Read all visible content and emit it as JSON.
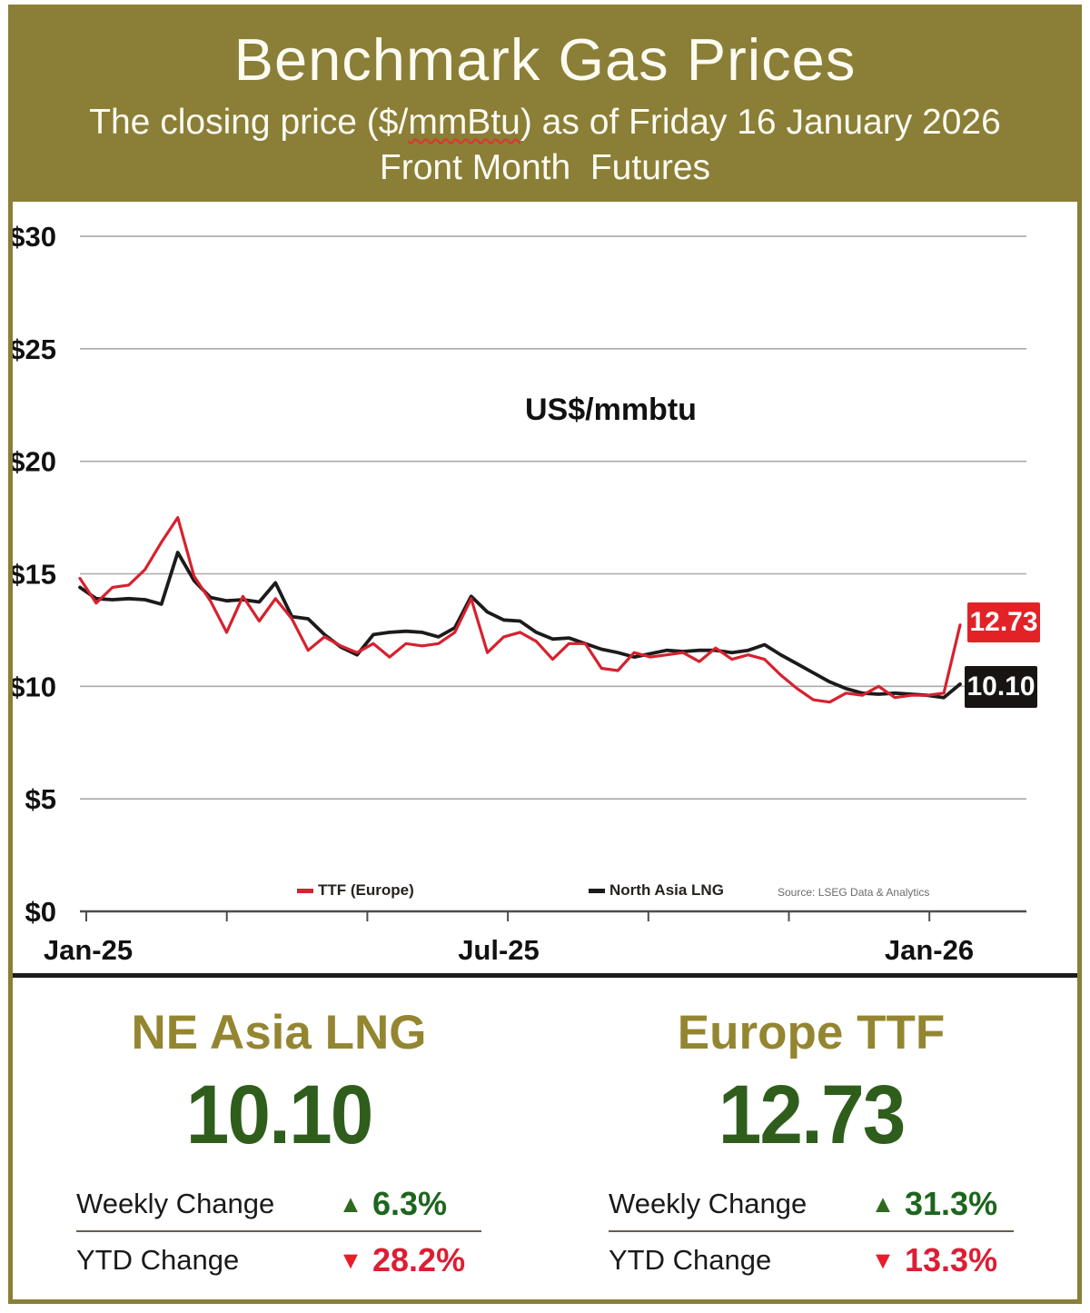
{
  "header": {
    "title": "Benchmark Gas Prices",
    "subtitle_prefix": "The closing price ($/",
    "subtitle_unit": "mmBtu",
    "subtitle_suffix": ") as of Friday 16 January 2026",
    "subtitle_line2": "Front Month  Futures"
  },
  "chart_data": {
    "type": "line",
    "unit_label": "US$/mmbtu",
    "x_ticks": [
      "Jan-25",
      "Jul-25",
      "Jan-26"
    ],
    "y_ticks": [
      "$30",
      "$25",
      "$20",
      "$15",
      "$10",
      "$5",
      "$0"
    ],
    "y_tick_values": [
      30,
      25,
      20,
      15,
      10,
      5,
      0
    ],
    "ylim": [
      0,
      30
    ],
    "grid": true,
    "legend_position": "bottom",
    "source": "Source: LSEG Data & Analytics",
    "series": [
      {
        "name": "TTF (Europe)",
        "color": "#d7212e",
        "end_label": "12.73",
        "last_value": 12.73,
        "values": [
          14.8,
          13.7,
          14.4,
          14.5,
          15.2,
          16.4,
          17.5,
          14.9,
          13.8,
          12.4,
          14.0,
          12.9,
          13.9,
          13.0,
          11.6,
          12.2,
          11.8,
          11.5,
          11.9,
          11.3,
          11.9,
          11.8,
          11.9,
          12.4,
          13.9,
          11.5,
          12.2,
          12.4,
          12.0,
          11.2,
          11.9,
          11.9,
          10.8,
          10.7,
          11.5,
          11.3,
          11.4,
          11.5,
          11.1,
          11.7,
          11.2,
          11.4,
          11.2,
          10.5,
          9.9,
          9.4,
          9.3,
          9.7,
          9.6,
          10.0,
          9.5,
          9.6,
          9.6,
          9.7,
          12.73
        ]
      },
      {
        "name": "North Asia LNG",
        "color": "#1c1a1a",
        "end_label": "10.10",
        "last_value": 10.1,
        "values": [
          14.4,
          13.9,
          13.85,
          13.9,
          13.85,
          13.65,
          15.95,
          14.7,
          13.95,
          13.8,
          13.85,
          13.75,
          14.6,
          13.1,
          13.0,
          12.3,
          11.75,
          11.4,
          12.3,
          12.4,
          12.45,
          12.4,
          12.2,
          12.6,
          14.0,
          13.3,
          12.95,
          12.9,
          12.4,
          12.1,
          12.15,
          11.9,
          11.65,
          11.5,
          11.3,
          11.45,
          11.6,
          11.55,
          11.6,
          11.6,
          11.5,
          11.6,
          11.85,
          11.4,
          11.0,
          10.6,
          10.2,
          9.9,
          9.7,
          9.65,
          9.7,
          9.65,
          9.6,
          9.5,
          10.1
        ]
      }
    ]
  },
  "cards": [
    {
      "title": "NE Asia LNG",
      "value": "10.10",
      "weekly_label": "Weekly Change",
      "weekly_change": "6.3%",
      "weekly_direction": "up",
      "ytd_label": "YTD Change",
      "ytd_change": "28.2%",
      "ytd_direction": "down"
    },
    {
      "title": "Europe TTF",
      "value": "12.73",
      "weekly_label": "Weekly Change",
      "weekly_change": "31.3%",
      "weekly_direction": "up",
      "ytd_label": "YTD Change",
      "ytd_change": "13.3%",
      "ytd_direction": "down"
    }
  ],
  "icons": {
    "up_triangle": "▲",
    "down_triangle": "▼"
  },
  "colors": {
    "olive": "#8b7e36",
    "header_text": "#fcfbf2",
    "ttf_red": "#d7212e",
    "lng_black": "#1c1a1a",
    "ttf_label_bg": "#e32227",
    "lng_label_bg": "#191414",
    "card_title_gold": "#948631",
    "card_value_green": "#2f5e1c",
    "change_green": "#1e651e",
    "change_red": "#dc1e35"
  }
}
